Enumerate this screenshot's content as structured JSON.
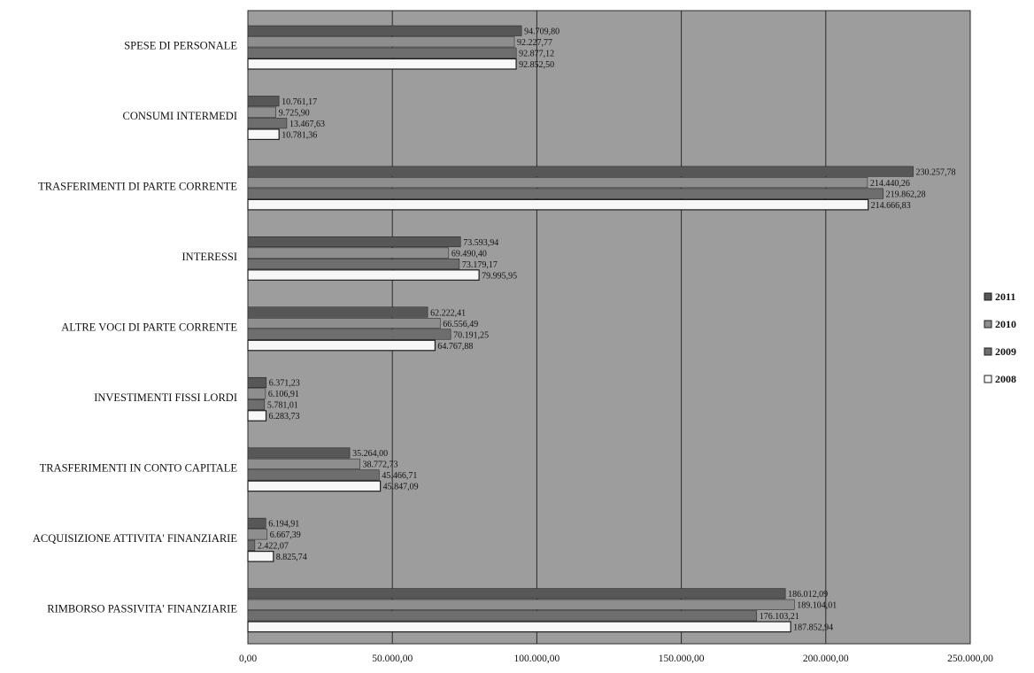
{
  "chart_data": {
    "type": "bar",
    "orientation": "horizontal",
    "title": "",
    "xlabel": "",
    "ylabel": "",
    "xlim": [
      0,
      250000
    ],
    "x_ticks": [
      0,
      50000,
      100000,
      150000,
      200000,
      250000
    ],
    "x_tick_labels": [
      "0,00",
      "50.000,00",
      "100.000,00",
      "150.000,00",
      "200.000,00",
      "250.000,00"
    ],
    "grid": "vertical",
    "legend_position": "right",
    "categories": [
      "SPESE DI PERSONALE",
      "CONSUMI INTERMEDI",
      "TRASFERIMENTI DI PARTE CORRENTE",
      "INTERESSI",
      "ALTRE VOCI DI PARTE CORRENTE",
      "INVESTIMENTI FISSI LORDI",
      "TRASFERIMENTI IN CONTO CAPITALE",
      "ACQUISIZIONE ATTIVITA' FINANZIARIE",
      "RIMBORSO PASSIVITA' FINANZIARIE"
    ],
    "series": [
      {
        "name": "2011",
        "color": "#575757",
        "values": [
          94709.8,
          10761.17,
          230257.78,
          73593.94,
          62222.41,
          6371.23,
          35264.0,
          6194.91,
          186012.09
        ],
        "labels": [
          "94.709,80",
          "10.761,17",
          "230.257,78",
          "73.593,94",
          "62.222,41",
          "6.371,23",
          "35.264,00",
          "6.194,91",
          "186.012,09"
        ]
      },
      {
        "name": "2010",
        "color": "#8e8e8e",
        "values": [
          92227.77,
          9725.9,
          214440.26,
          69490.4,
          66556.49,
          6106.91,
          38772.73,
          6667.39,
          189104.01
        ],
        "labels": [
          "92.227,77",
          "9.725,90",
          "214.440,26",
          "69.490,40",
          "66.556,49",
          "6.106,91",
          "38.772,73",
          "6.667,39",
          "189.104,01"
        ]
      },
      {
        "name": "2009",
        "color": "#6e6e6e",
        "values": [
          92877.12,
          13467.63,
          219862.28,
          73179.17,
          70191.25,
          5781.01,
          45466.71,
          2422.07,
          176103.21
        ],
        "labels": [
          "92.877,12",
          "13.467,63",
          "219.862,28",
          "73.179,17",
          "70.191,25",
          "5.781,01",
          "45.466,71",
          "2.422,07",
          "176.103,21"
        ]
      },
      {
        "name": "2008",
        "color": "#f7f7f7",
        "values": [
          92852.5,
          10781.36,
          214666.83,
          79995.95,
          64767.88,
          6283.73,
          45847.09,
          8825.74,
          187852.94
        ],
        "labels": [
          "92.852,50",
          "10.781,36",
          "214.666,83",
          "79.995,95",
          "64.767,88",
          "6.283,73",
          "45.847,09",
          "8.825,74",
          "187.852,94"
        ]
      }
    ],
    "colors": {
      "plot_background": "#9d9d9d",
      "gridline": "#2a2a2a",
      "bar_outline": "#1e1e1e"
    }
  }
}
